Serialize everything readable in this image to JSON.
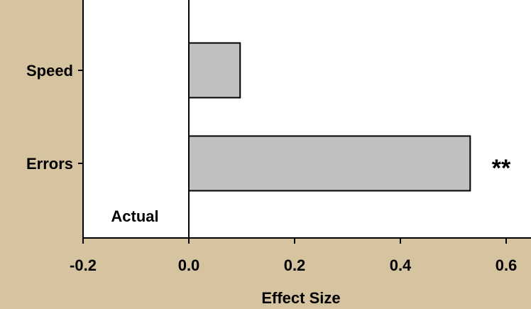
{
  "chart_data": {
    "type": "bar",
    "orientation": "horizontal",
    "categories": [
      "Speed",
      "Errors"
    ],
    "values": [
      0.097,
      0.532
    ],
    "xlabel": "Effect Size",
    "ylabel": "",
    "xlim": [
      -0.2,
      0.65
    ],
    "xticks": [
      -0.2,
      0.0,
      0.2,
      0.4,
      0.6
    ],
    "xtick_labels": [
      "-0.2",
      "0.0",
      "0.2",
      "0.4",
      "0.6"
    ],
    "grid": false,
    "legend": "none",
    "annotations": [
      {
        "text": "Actual",
        "category": null
      },
      {
        "text": "**",
        "category": "Errors"
      }
    ],
    "colors": {
      "background": "#d6c3a0",
      "plot_area": "#ffffff",
      "bar_fill": "#c0c0c0",
      "bar_stroke": "#000000"
    }
  }
}
